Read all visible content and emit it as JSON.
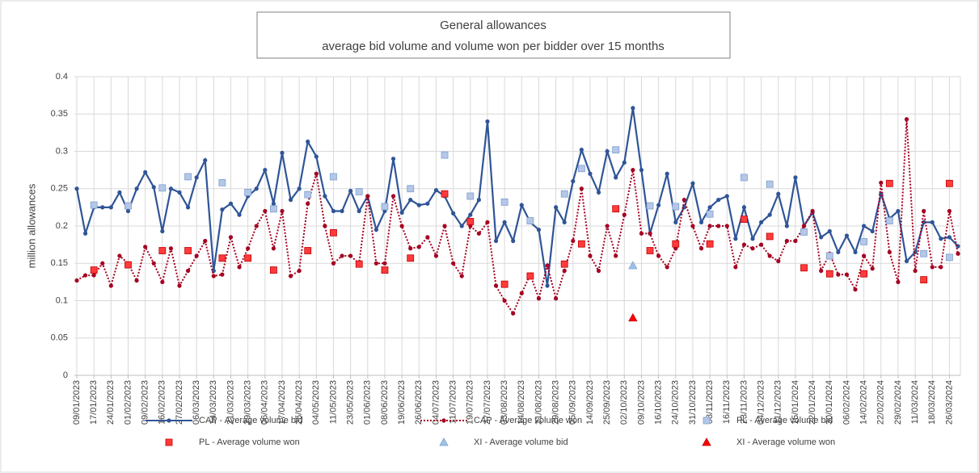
{
  "chart_data": {
    "type": "line",
    "title": "General allowances",
    "subtitle": "average bid volume and volume won per bidder over 15 months",
    "y_label": "million allowances",
    "ylim": [
      0,
      0.4
    ],
    "yticks": [
      0,
      0.05,
      0.1,
      0.15,
      0.2,
      0.25,
      0.3,
      0.35,
      0.4
    ],
    "grid": true,
    "legend": "bottom",
    "categories": [
      "09/01/2023",
      null,
      "17/01/2023",
      null,
      "24/01/2023",
      null,
      "01/02/2023",
      null,
      "09/02/2023",
      null,
      "16/02/2023",
      null,
      "27/02/2023",
      null,
      "06/03/2023",
      null,
      "14/03/2023",
      null,
      "21/03/2023",
      null,
      "29/03/2023",
      null,
      "06/04/2023",
      null,
      "17/04/2023",
      null,
      "25/04/2023",
      null,
      "04/05/2023",
      null,
      "11/05/2023",
      null,
      "23/05/2023",
      null,
      "01/06/2023",
      null,
      "08/06/2023",
      null,
      "19/06/2023",
      null,
      "26/06/2023",
      null,
      "04/07/2023",
      null,
      "11/07/2023",
      null,
      "19/07/2023",
      null,
      "27/07/2023",
      null,
      "03/08/2023",
      null,
      "14/08/2023",
      null,
      "21/08/2023",
      null,
      "29/08/2023",
      null,
      "05/09/2023",
      null,
      "14/09/2023",
      null,
      "25/09/2023",
      null,
      "02/10/2023",
      null,
      "09/10/2023",
      null,
      "16/10/2023",
      null,
      "24/10/2023",
      null,
      "31/10/2023",
      null,
      "08/11/2023",
      null,
      "16/11/2023",
      null,
      "23/11/2023",
      null,
      "04/12/2023",
      null,
      "11/12/2023",
      null,
      "15/01/2024",
      null,
      "22/01/2024",
      null,
      "30/01/2024",
      null,
      "06/02/2024",
      null,
      "14/02/2024",
      null,
      "22/02/2024",
      null,
      "29/02/2024",
      null,
      "11/03/2024",
      null,
      "18/03/2024",
      null,
      "26/03/2024",
      null
    ],
    "series": [
      {
        "name": "CAP - Average volume bid",
        "color": "#2f5597",
        "line": "solid",
        "marker": "circle",
        "values": [
          0.25,
          0.19,
          0.225,
          0.225,
          0.225,
          0.245,
          0.22,
          0.25,
          0.272,
          0.252,
          0.193,
          0.25,
          0.245,
          0.225,
          0.265,
          0.288,
          0.14,
          0.222,
          0.23,
          0.215,
          0.24,
          0.25,
          0.275,
          0.23,
          0.298,
          0.235,
          0.25,
          0.313,
          0.293,
          0.24,
          0.22,
          0.22,
          0.247,
          0.22,
          0.24,
          0.195,
          0.22,
          0.29,
          0.218,
          0.235,
          0.228,
          0.23,
          0.248,
          0.24,
          0.217,
          0.2,
          0.215,
          0.235,
          0.34,
          0.18,
          0.205,
          0.18,
          0.228,
          0.205,
          0.195,
          0.12,
          0.225,
          0.205,
          0.26,
          0.302,
          0.27,
          0.245,
          0.3,
          0.265,
          0.285,
          0.358,
          0.275,
          0.19,
          0.228,
          0.27,
          0.205,
          0.225,
          0.257,
          0.205,
          0.225,
          0.235,
          0.24,
          0.183,
          0.225,
          0.183,
          0.205,
          0.215,
          0.243,
          0.2,
          0.265,
          0.2,
          0.218,
          0.185,
          0.193,
          0.165,
          0.187,
          0.165,
          0.2,
          0.193,
          0.243,
          0.21,
          0.22,
          0.153,
          0.165,
          0.205,
          0.205,
          0.183,
          0.185,
          0.173
        ]
      },
      {
        "name": "CAP - Average volume won",
        "color": "#a50021",
        "line": "dotted",
        "marker": "circle",
        "values": [
          0.127,
          0.134,
          0.134,
          0.15,
          0.12,
          0.16,
          0.15,
          0.127,
          0.172,
          0.15,
          0.125,
          0.17,
          0.12,
          0.14,
          0.16,
          0.18,
          0.133,
          0.135,
          0.185,
          0.145,
          0.17,
          0.2,
          0.22,
          0.17,
          0.22,
          0.133,
          0.14,
          0.23,
          0.27,
          0.2,
          0.15,
          0.16,
          0.16,
          0.15,
          0.24,
          0.15,
          0.15,
          0.24,
          0.2,
          0.17,
          0.172,
          0.185,
          0.16,
          0.2,
          0.15,
          0.133,
          0.2,
          0.19,
          0.205,
          0.12,
          0.1,
          0.083,
          0.11,
          0.135,
          0.103,
          0.147,
          0.103,
          0.14,
          0.18,
          0.25,
          0.16,
          0.14,
          0.2,
          0.16,
          0.215,
          0.275,
          0.19,
          0.19,
          0.16,
          0.145,
          0.17,
          0.235,
          0.2,
          0.17,
          0.2,
          0.2,
          0.2,
          0.145,
          0.175,
          0.17,
          0.175,
          0.16,
          0.153,
          0.18,
          0.18,
          0.2,
          0.22,
          0.14,
          0.163,
          0.135,
          0.135,
          0.115,
          0.16,
          0.143,
          0.258,
          0.165,
          0.125,
          0.343,
          0.14,
          0.22,
          0.145,
          0.145,
          0.22,
          0.163
        ]
      },
      {
        "name": "PL - Average volume bid",
        "color": "#b4c7e7",
        "line": "none",
        "marker": "square",
        "values": [
          null,
          null,
          0.228,
          null,
          null,
          null,
          0.227,
          null,
          null,
          null,
          0.251,
          null,
          null,
          0.266,
          null,
          null,
          null,
          0.258,
          null,
          null,
          0.245,
          null,
          null,
          0.223,
          null,
          null,
          null,
          0.242,
          null,
          null,
          0.266,
          null,
          null,
          0.246,
          null,
          null,
          0.226,
          null,
          null,
          0.25,
          null,
          null,
          null,
          0.295,
          null,
          null,
          0.24,
          null,
          null,
          null,
          0.232,
          null,
          null,
          0.207,
          null,
          null,
          null,
          0.243,
          null,
          0.277,
          null,
          null,
          null,
          0.302,
          null,
          null,
          null,
          0.227,
          null,
          null,
          0.226,
          null,
          null,
          null,
          0.216,
          null,
          null,
          null,
          0.265,
          null,
          null,
          0.256,
          null,
          null,
          null,
          0.192,
          null,
          null,
          0.16,
          null,
          null,
          null,
          0.179,
          null,
          null,
          0.207,
          null,
          null,
          null,
          0.163,
          null,
          null,
          0.158,
          null
        ]
      },
      {
        "name": "PL - Average volume won",
        "color": "#ff3b3b",
        "line": "none",
        "marker": "square",
        "values": [
          null,
          null,
          0.141,
          null,
          null,
          null,
          0.148,
          null,
          null,
          null,
          0.167,
          null,
          null,
          0.167,
          null,
          null,
          null,
          0.157,
          null,
          null,
          0.157,
          null,
          null,
          0.141,
          null,
          null,
          null,
          0.167,
          null,
          null,
          0.191,
          null,
          null,
          0.149,
          null,
          null,
          0.141,
          null,
          null,
          0.157,
          null,
          null,
          null,
          0.243,
          null,
          null,
          0.206,
          null,
          null,
          null,
          0.122,
          null,
          null,
          0.133,
          null,
          null,
          null,
          0.149,
          null,
          0.176,
          null,
          null,
          null,
          0.223,
          null,
          null,
          null,
          0.167,
          null,
          null,
          0.176,
          null,
          null,
          null,
          0.176,
          null,
          null,
          null,
          0.209,
          null,
          null,
          0.186,
          null,
          null,
          null,
          0.144,
          null,
          null,
          0.136,
          null,
          null,
          null,
          0.136,
          null,
          null,
          0.257,
          null,
          null,
          null,
          0.128,
          null,
          null,
          0.257,
          null
        ]
      },
      {
        "name": "XI - Average volume bid",
        "color": "#9dc3e6",
        "line": "none",
        "marker": "triangle",
        "values": [
          null,
          null,
          null,
          null,
          null,
          null,
          null,
          null,
          null,
          null,
          null,
          null,
          null,
          null,
          null,
          null,
          null,
          null,
          null,
          null,
          null,
          null,
          null,
          null,
          null,
          null,
          null,
          null,
          null,
          null,
          null,
          null,
          null,
          null,
          null,
          null,
          null,
          null,
          null,
          null,
          null,
          null,
          null,
          null,
          null,
          null,
          null,
          null,
          null,
          null,
          null,
          null,
          null,
          null,
          null,
          null,
          null,
          null,
          null,
          null,
          null,
          null,
          null,
          null,
          null,
          0.147,
          null,
          null,
          null,
          null,
          null,
          null,
          null,
          null,
          null,
          null,
          null,
          null,
          null,
          null,
          null,
          null,
          null,
          null,
          null,
          null,
          null,
          null,
          null,
          null,
          null,
          null,
          null,
          null,
          null,
          null,
          null,
          null,
          null,
          null,
          null,
          null,
          null,
          null
        ]
      },
      {
        "name": "XI - Average volume won",
        "color": "#ff0000",
        "line": "none",
        "marker": "triangle",
        "values": [
          null,
          null,
          null,
          null,
          null,
          null,
          null,
          null,
          null,
          null,
          null,
          null,
          null,
          null,
          null,
          null,
          null,
          null,
          null,
          null,
          null,
          null,
          null,
          null,
          null,
          null,
          null,
          null,
          null,
          null,
          null,
          null,
          null,
          null,
          null,
          null,
          null,
          null,
          null,
          null,
          null,
          null,
          null,
          null,
          null,
          null,
          null,
          null,
          null,
          null,
          null,
          null,
          null,
          null,
          null,
          null,
          null,
          null,
          null,
          null,
          null,
          null,
          null,
          null,
          null,
          0.077,
          null,
          null,
          null,
          null,
          null,
          null,
          null,
          null,
          null,
          null,
          null,
          null,
          null,
          null,
          null,
          null,
          null,
          null,
          null,
          null,
          null,
          null,
          null,
          null,
          null,
          null,
          null,
          null,
          null,
          null,
          null,
          null,
          null,
          null,
          null,
          null,
          null,
          null
        ]
      }
    ]
  }
}
